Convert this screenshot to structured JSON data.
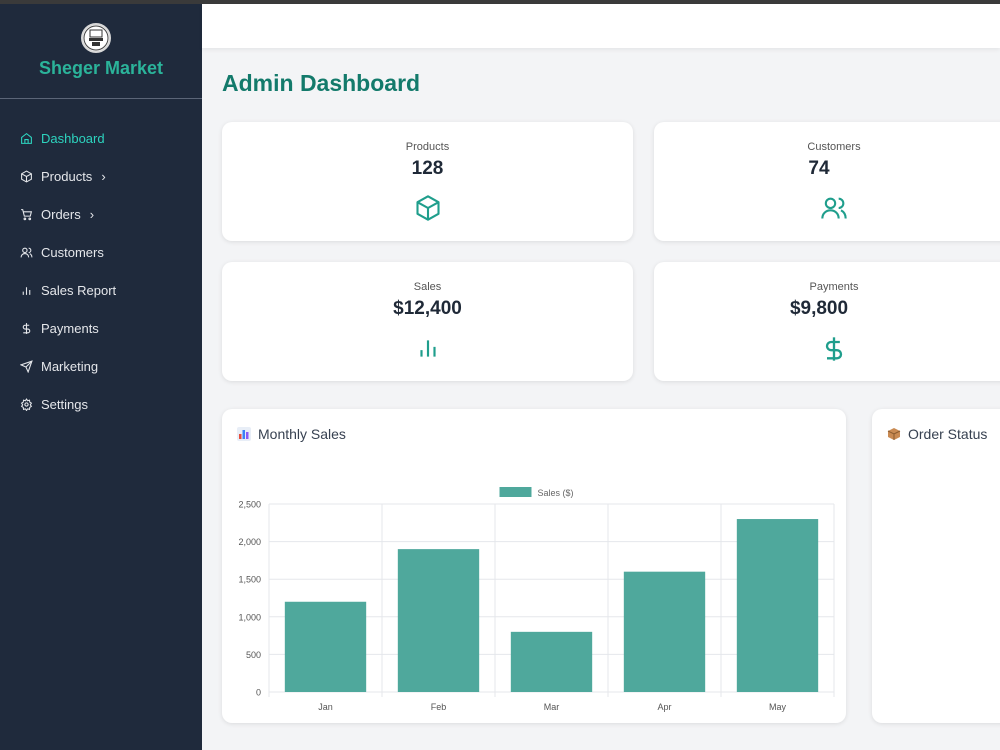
{
  "brand": {
    "name": "Sheger Market",
    "logo_text": "Sheger MARKET"
  },
  "sidebar": {
    "items": [
      {
        "label": "Dashboard",
        "icon": "home-icon",
        "active": true,
        "has_chevron": false
      },
      {
        "label": "Products",
        "icon": "box-icon",
        "active": false,
        "has_chevron": true
      },
      {
        "label": "Orders",
        "icon": "cart-icon",
        "active": false,
        "has_chevron": true
      },
      {
        "label": "Customers",
        "icon": "users-icon",
        "active": false,
        "has_chevron": false
      },
      {
        "label": "Sales Report",
        "icon": "bar-chart-icon",
        "active": false,
        "has_chevron": false
      },
      {
        "label": "Payments",
        "icon": "dollar-icon",
        "active": false,
        "has_chevron": false
      },
      {
        "label": "Marketing",
        "icon": "send-icon",
        "active": false,
        "has_chevron": false
      },
      {
        "label": "Settings",
        "icon": "gear-icon",
        "active": false,
        "has_chevron": false
      }
    ]
  },
  "main": {
    "title": "Admin Dashboard",
    "stats": [
      {
        "label": "Products",
        "value": "128",
        "icon": "box-icon"
      },
      {
        "label": "Customers",
        "value": "74",
        "icon": "users-icon"
      },
      {
        "label": "Sales",
        "value": "$12,400",
        "icon": "bar-chart-icon"
      },
      {
        "label": "Payments",
        "value": "$9,800",
        "icon": "dollar-icon"
      }
    ],
    "monthly_sales_title": "Monthly Sales",
    "order_status_title": "Order Status"
  },
  "colors": {
    "accent": "#2bb39a",
    "bar": "#4fa89c",
    "sidebar_bg": "#1f2a3c",
    "title": "#137a6b"
  },
  "chart_data": {
    "type": "bar",
    "categories": [
      "Jan",
      "Feb",
      "Mar",
      "Apr",
      "May"
    ],
    "series": [
      {
        "name": "Sales ($)",
        "values": [
          1200,
          1900,
          800,
          1600,
          2300
        ]
      }
    ],
    "ylim": [
      0,
      2500
    ],
    "yticks": [
      "0",
      "500",
      "1,000",
      "1,500",
      "2,000",
      "2,500"
    ],
    "legend": "top-center",
    "grid": true
  }
}
